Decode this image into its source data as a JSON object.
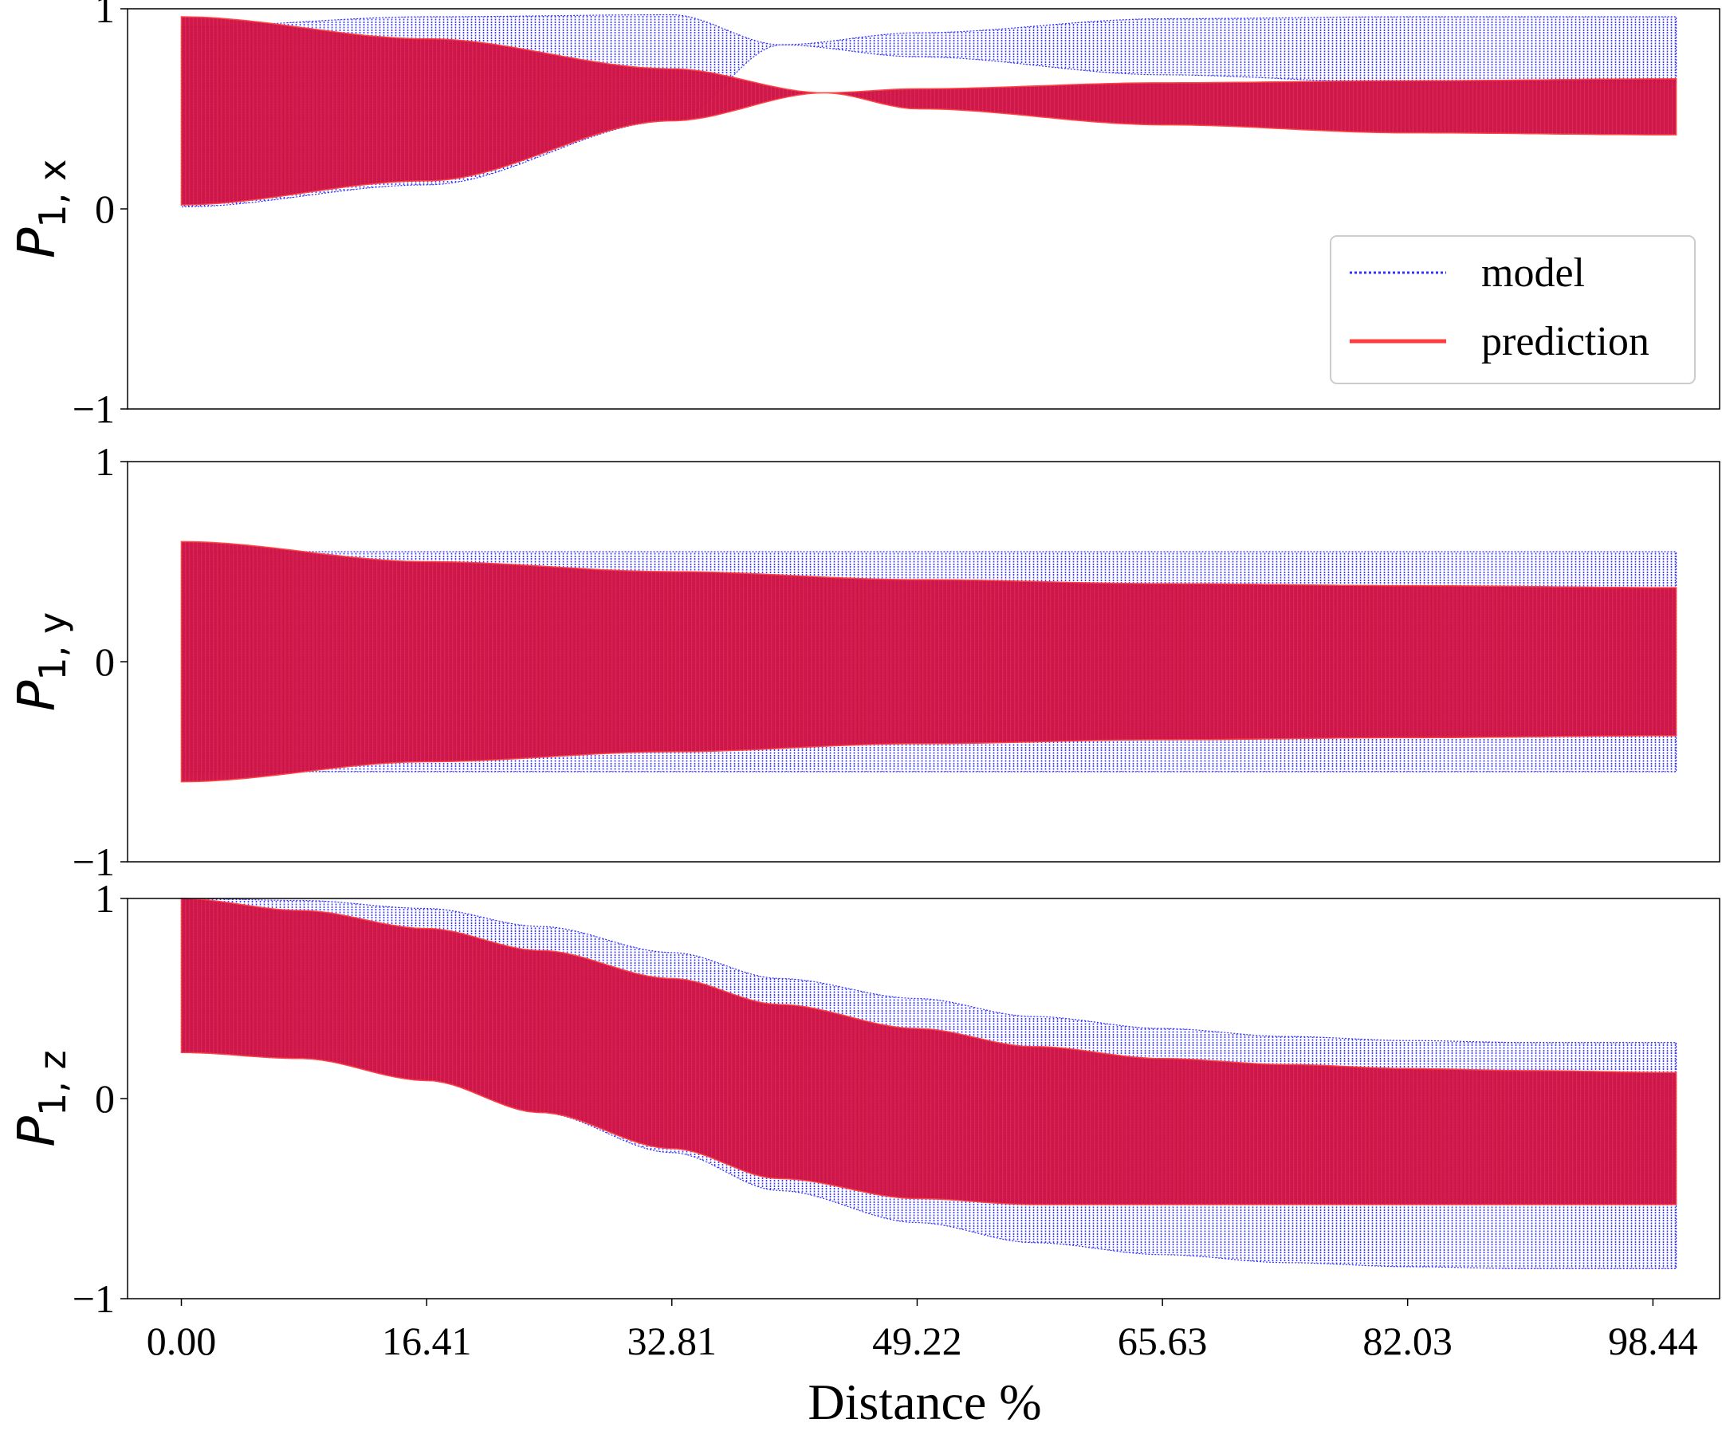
{
  "chart_data": [
    {
      "type": "line",
      "panel": "P1x",
      "ylabel_main": "P",
      "ylabel_sub": "1, x",
      "xlabel": "",
      "ylim": [
        -1,
        1
      ],
      "yticks": [
        "1",
        "0",
        "−1"
      ],
      "xlim": [
        -3.6,
        102.9
      ],
      "legend": {
        "placement": "right",
        "entries": [
          {
            "label": "model",
            "color": "#3333ff",
            "style": "dotted"
          },
          {
            "label": "prediction",
            "color": "#ff3333",
            "style": "solid"
          }
        ]
      },
      "series": [
        {
          "name": "model",
          "color": "#3333ff",
          "x": [
            0,
            16.41,
            32.81,
            40.1,
            49.22,
            65.63,
            82.03,
            100
          ],
          "upper": [
            0.91,
            0.96,
            0.97,
            0.82,
            0.88,
            0.95,
            0.96,
            0.96
          ],
          "lower": [
            0.01,
            0.12,
            0.44,
            0.82,
            0.76,
            0.67,
            0.63,
            0.63
          ]
        },
        {
          "name": "prediction",
          "color": "#dd1144",
          "x": [
            0,
            16.41,
            32.81,
            43,
            49.22,
            65.63,
            82.03,
            100
          ],
          "upper": [
            0.96,
            0.85,
            0.7,
            0.58,
            0.6,
            0.63,
            0.64,
            0.65
          ],
          "lower": [
            0.02,
            0.14,
            0.44,
            0.58,
            0.5,
            0.42,
            0.38,
            0.37
          ]
        }
      ]
    },
    {
      "type": "line",
      "panel": "P1y",
      "ylabel_main": "P",
      "ylabel_sub": "1, y",
      "xlabel": "",
      "ylim": [
        -1,
        1
      ],
      "yticks": [
        "1",
        "0",
        "−1"
      ],
      "xlim": [
        -3.6,
        102.9
      ],
      "series": [
        {
          "name": "model",
          "color": "#3333ff",
          "x": [
            0,
            16.41,
            32.81,
            49.22,
            65.63,
            82.03,
            100
          ],
          "upper": [
            0.55,
            0.55,
            0.55,
            0.55,
            0.55,
            0.55,
            0.55
          ],
          "lower": [
            -0.55,
            -0.55,
            -0.55,
            -0.55,
            -0.55,
            -0.55,
            -0.55
          ]
        },
        {
          "name": "prediction",
          "color": "#dd1144",
          "x": [
            0,
            16.41,
            32.81,
            49.22,
            65.63,
            82.03,
            100
          ],
          "upper": [
            0.6,
            0.5,
            0.45,
            0.41,
            0.39,
            0.38,
            0.37
          ],
          "lower": [
            -0.6,
            -0.5,
            -0.45,
            -0.41,
            -0.39,
            -0.38,
            -0.37
          ]
        }
      ]
    },
    {
      "type": "line",
      "panel": "P1z",
      "ylabel_main": "P",
      "ylabel_sub": "1, z",
      "xlabel": "Distance %",
      "ylim": [
        -1,
        1
      ],
      "yticks": [
        "1",
        "0",
        "−1"
      ],
      "xlim": [
        -3.6,
        102.9
      ],
      "xticks": [
        "0.00",
        "16.41",
        "32.81",
        "49.22",
        "65.63",
        "82.03",
        "98.44"
      ],
      "xtick_values": [
        0,
        16.41,
        32.81,
        49.22,
        65.63,
        82.03,
        98.44
      ],
      "series": [
        {
          "name": "model",
          "color": "#3333ff",
          "x": [
            0,
            8,
            16.41,
            24,
            32.81,
            40,
            49.22,
            57,
            65.63,
            74,
            82.03,
            90,
            100
          ],
          "upper": [
            1.0,
            0.99,
            0.95,
            0.86,
            0.73,
            0.6,
            0.5,
            0.41,
            0.35,
            0.31,
            0.29,
            0.28,
            0.28
          ],
          "lower": [
            0.23,
            0.2,
            0.09,
            -0.07,
            -0.27,
            -0.46,
            -0.62,
            -0.72,
            -0.78,
            -0.82,
            -0.84,
            -0.85,
            -0.85
          ]
        },
        {
          "name": "prediction",
          "color": "#dd1144",
          "x": [
            0,
            8,
            16.41,
            24,
            32.81,
            40,
            49.22,
            57,
            65.63,
            74,
            82.03,
            90,
            100
          ],
          "upper": [
            1.0,
            0.94,
            0.85,
            0.74,
            0.6,
            0.47,
            0.35,
            0.26,
            0.2,
            0.17,
            0.15,
            0.14,
            0.13
          ],
          "lower": [
            0.23,
            0.2,
            0.09,
            -0.07,
            -0.25,
            -0.4,
            -0.5,
            -0.53,
            -0.53,
            -0.53,
            -0.53,
            -0.53,
            -0.53
          ]
        }
      ]
    }
  ],
  "colors": {
    "model": "#3333ff",
    "prediction_fill": "#cc1144",
    "prediction_line": "#ff3f3f"
  }
}
